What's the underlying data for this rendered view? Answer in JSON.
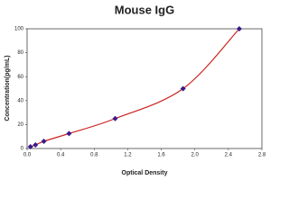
{
  "chart_data": {
    "type": "line",
    "title": "Mouse IgG",
    "x_label": "Optical Density",
    "y_label": "Concentration(pg/mL)",
    "x": [
      0.04,
      0.1,
      0.2,
      0.5,
      1.05,
      1.86,
      2.53
    ],
    "values": [
      1.5,
      3,
      6,
      12.5,
      25,
      50,
      100
    ],
    "color": "#cc2222",
    "marker_color": "#3a1a8a",
    "xlim": [
      0,
      2.8
    ],
    "xticks": [
      {
        "value": 0,
        "label": "0.0"
      },
      0.4,
      0.8,
      1.2,
      1.6,
      {
        "value": 2,
        "label": "2.0"
      },
      2.4,
      2.8
    ],
    "ylim": [
      0,
      100
    ],
    "yticks": [
      0,
      20,
      40,
      60,
      80,
      100
    ],
    "grid": false
  }
}
